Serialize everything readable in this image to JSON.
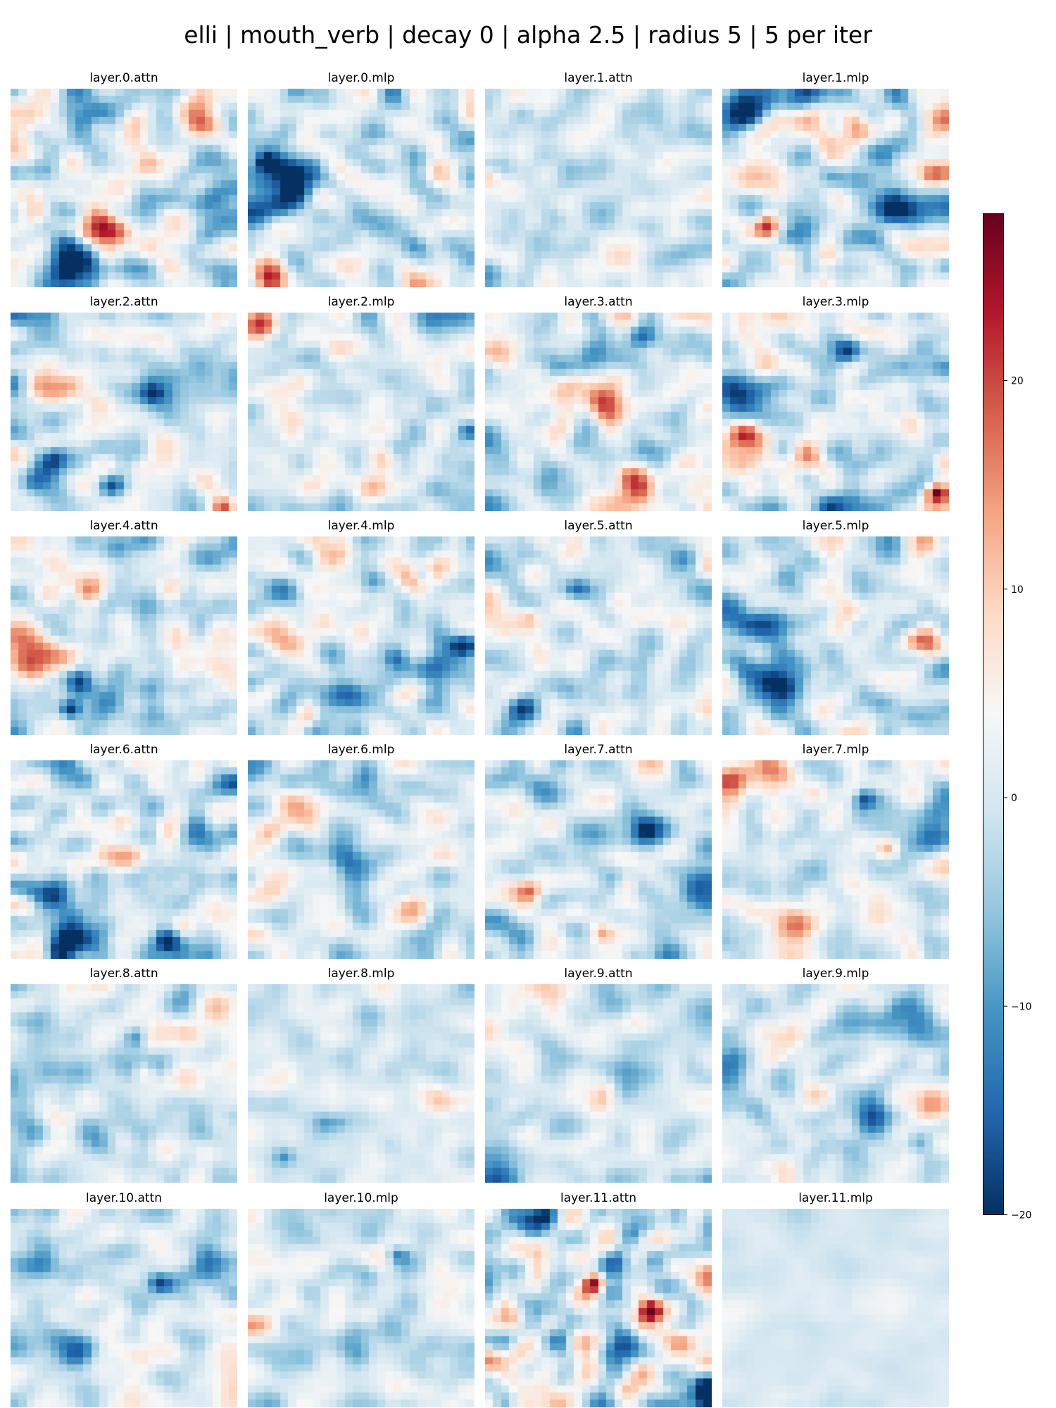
{
  "chart_data": {
    "type": "heatmap",
    "title": "elli | mouth_verb | decay 0 | alpha 2.5 | radius 5 | 5 per iter",
    "colormap": "RdBu_r",
    "colormap_stops": [
      "#053061",
      "#2166ac",
      "#4393c3",
      "#92c5de",
      "#d1e5f0",
      "#f7f7f7",
      "#fddbc7",
      "#f4a582",
      "#d6604d",
      "#b2182b",
      "#67001f"
    ],
    "grid_size": [
      28,
      28
    ],
    "vmin": -20,
    "vmax": 28,
    "colorbar": {
      "ticks": [
        20,
        10,
        0,
        -10,
        -20
      ],
      "tick_labels": [
        "20",
        "10",
        "0",
        "−10",
        "−20"
      ]
    },
    "panels": [
      {
        "title": "layer.0.attn",
        "intensity": 1.0
      },
      {
        "title": "layer.0.mlp",
        "intensity": 0.9
      },
      {
        "title": "layer.1.attn",
        "intensity": 0.6
      },
      {
        "title": "layer.1.mlp",
        "intensity": 1.0
      },
      {
        "title": "layer.2.attn",
        "intensity": 0.75
      },
      {
        "title": "layer.2.mlp",
        "intensity": 0.65
      },
      {
        "title": "layer.3.attn",
        "intensity": 0.8
      },
      {
        "title": "layer.3.mlp",
        "intensity": 0.85
      },
      {
        "title": "layer.4.attn",
        "intensity": 0.8
      },
      {
        "title": "layer.4.mlp",
        "intensity": 0.85
      },
      {
        "title": "layer.5.attn",
        "intensity": 0.75
      },
      {
        "title": "layer.5.mlp",
        "intensity": 0.85
      },
      {
        "title": "layer.6.attn",
        "intensity": 0.95
      },
      {
        "title": "layer.6.mlp",
        "intensity": 0.7
      },
      {
        "title": "layer.7.attn",
        "intensity": 0.75
      },
      {
        "title": "layer.7.mlp",
        "intensity": 0.7
      },
      {
        "title": "layer.8.attn",
        "intensity": 0.6
      },
      {
        "title": "layer.8.mlp",
        "intensity": 0.4
      },
      {
        "title": "layer.9.attn",
        "intensity": 0.55
      },
      {
        "title": "layer.9.mlp",
        "intensity": 0.65
      },
      {
        "title": "layer.10.attn",
        "intensity": 0.6
      },
      {
        "title": "layer.10.mlp",
        "intensity": 0.55
      },
      {
        "title": "layer.11.attn",
        "intensity": 1.3
      },
      {
        "title": "layer.11.mlp",
        "intensity": 0.15
      }
    ]
  }
}
